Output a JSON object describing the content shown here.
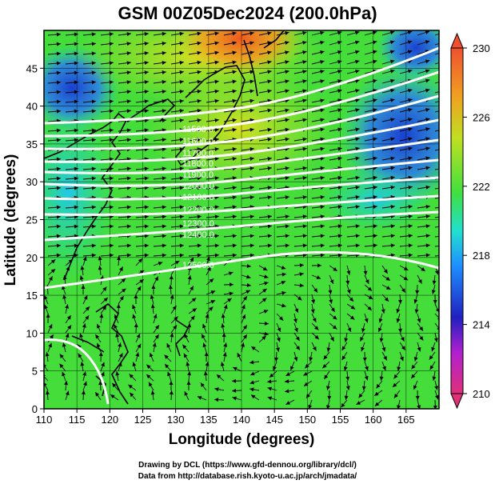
{
  "title": "GSM 00Z05Dec2024 (200.0hPa)",
  "xlabel": "Longitude (degrees)",
  "ylabel": "Latitude  (degrees)",
  "credit_line1": "Drawing by DCL (https://www.gfd-dennou.org/library/dcl/)",
  "credit_line2": "Data from http://database.rish.kyoto-u.ac.jp/arch/jmadata/",
  "map": {
    "lon_range": [
      110,
      170
    ],
    "lat_range": [
      0,
      50
    ],
    "lon_ticks": [
      "110",
      "115",
      "120",
      "125",
      "130",
      "135",
      "140",
      "145",
      "150",
      "155",
      "160",
      "165"
    ],
    "lat_ticks": [
      "0",
      "5",
      "10",
      "15",
      "20",
      "25",
      "30",
      "35",
      "40",
      "45"
    ],
    "field": "temperature (K)",
    "contour_field": "geopotential height (m)",
    "contour_labels": [
      "11500.0",
      "11600.0",
      "11700.0",
      "11800.0",
      "11900.0",
      "12000.0",
      "12100.0",
      "12200.0",
      "12300.0",
      "12400.0",
      "12500.0"
    ]
  },
  "colorbar": {
    "ticks": [
      "230",
      "226",
      "222",
      "218",
      "214",
      "210"
    ],
    "range": [
      210,
      230
    ],
    "colors": [
      "#e0307a",
      "#b020d0",
      "#2020c0",
      "#1e8fff",
      "#20e0d0",
      "#40e040",
      "#c0e020",
      "#f0a020",
      "#f05030"
    ]
  }
}
